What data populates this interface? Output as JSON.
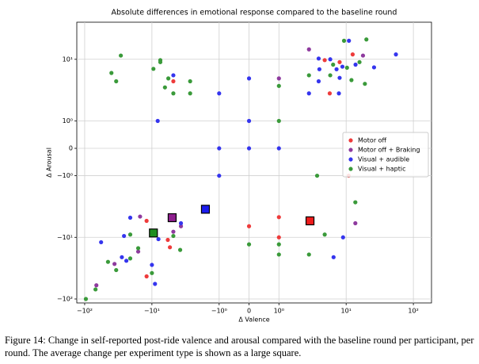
{
  "chart_data": {
    "type": "scatter",
    "title": "Absolute differences in emotional response compared to the baseline round",
    "x_label": "Δ Valence",
    "y_label": "Δ Arousal",
    "xscale": "symlog",
    "yscale": "symlog",
    "linthresh": 1,
    "linscale": 0.4,
    "xlim": [
      -131,
      186
    ],
    "ylim": [
      -116,
      40
    ],
    "xticks": [
      {
        "value": -100,
        "label": "−10²"
      },
      {
        "value": -10,
        "label": "−10¹"
      },
      {
        "value": -1,
        "label": "−10⁰"
      },
      0,
      {
        "value": 1,
        "label": "10⁰"
      },
      {
        "value": 10,
        "label": "10¹"
      },
      {
        "value": 100,
        "label": "10²"
      }
    ],
    "yticks": [
      {
        "value": -100,
        "label": "−10²"
      },
      {
        "value": -10,
        "label": "−10¹"
      },
      {
        "value": -1,
        "label": "−10⁰"
      },
      0,
      {
        "value": 1,
        "label": "10⁰"
      },
      {
        "value": 10,
        "label": "10¹"
      }
    ],
    "grid": true,
    "legend": "upper right",
    "series": [
      {
        "name": "Motor off",
        "color": "#ee3b3b",
        "x": [
          4.8,
          8,
          12.5,
          5.7,
          -4.8,
          10.9,
          -12,
          -5.4,
          -12,
          -5.8,
          0,
          1,
          1
        ],
        "values": [
          9.7,
          9,
          12,
          2.8,
          4.4,
          -1,
          -5.4,
          -14.5,
          -43,
          -11,
          -6.6,
          -4.7,
          -10
        ]
      },
      {
        "name": "Motor off + Braking",
        "color": "#8e3a9e",
        "x": [
          2.8,
          17.8,
          1,
          -15,
          -3.7,
          -4.8,
          -16,
          -36,
          -67,
          13.7
        ],
        "values": [
          14.5,
          11.5,
          4.9,
          -4.6,
          -6.6,
          -8.1,
          -17,
          -27,
          -60,
          -5.9
        ]
      },
      {
        "name": "Visual + audible",
        "color": "#3535ee",
        "x": [
          11,
          3.9,
          5.8,
          7.2,
          8.8,
          13.8,
          26,
          55,
          4,
          8,
          2.8,
          7.8,
          3.9,
          0,
          -4.8,
          -1,
          -8.2,
          0,
          -1,
          0,
          1,
          -1,
          -21,
          -3.7,
          -8,
          -26,
          -28,
          -24,
          -57,
          -9,
          -10,
          6.5,
          9
        ],
        "values": [
          20,
          10.3,
          10,
          6.9,
          7.6,
          8.2,
          7.4,
          12,
          6.9,
          5,
          2.8,
          2.8,
          4.4,
          4.9,
          5.5,
          2.8,
          1,
          1,
          0,
          0,
          0,
          -1,
          -4.8,
          -5.9,
          -10.7,
          -9.5,
          -21,
          -24,
          -12,
          -57,
          -28,
          -21,
          -10
        ]
      },
      {
        "name": "Visual + haptic",
        "color": "#3a9a3a",
        "x": [
          9.3,
          20,
          6.4,
          10.3,
          15.8,
          2.8,
          5.8,
          12,
          19,
          1,
          -29,
          -40,
          -34,
          -7.5,
          -9.5,
          -4.8,
          -5.7,
          -6.4,
          -2.7,
          -2.7,
          -7.5,
          1,
          3.7,
          -9.3,
          -4.8,
          -21,
          -16,
          -3.8,
          -21,
          -45,
          -34,
          -10,
          -96,
          -69,
          0,
          1,
          1,
          2.8,
          4.8,
          13.7
        ],
        "values": [
          20,
          21,
          8.2,
          7.3,
          9,
          5.5,
          5.5,
          4.6,
          4,
          3.7,
          11.5,
          6,
          4.4,
          9.7,
          7,
          2.8,
          4.9,
          3.5,
          4.4,
          2.8,
          9,
          1,
          -1,
          -8.8,
          -9.5,
          -9,
          -15,
          -16,
          -22,
          -25,
          -34,
          -38,
          -100,
          -70,
          -13,
          -13,
          -19,
          -19,
          -9,
          -2.7
        ]
      }
    ],
    "mean_points": [
      {
        "color": "#ee1c1c",
        "x": 2.9,
        "y": -5.4
      },
      {
        "color": "#8e1f8e",
        "x": -5,
        "y": -4.8
      },
      {
        "color": "#1c1cee",
        "x": -1.6,
        "y": -3.5
      },
      {
        "color": "#1f8e1f",
        "x": -9.5,
        "y": -8.5
      }
    ]
  },
  "caption": "Figure 14: Change in self-reported post-ride valence and arousal compared with the baseline round per participant, per round. The average change per experiment type is shown as a large square."
}
